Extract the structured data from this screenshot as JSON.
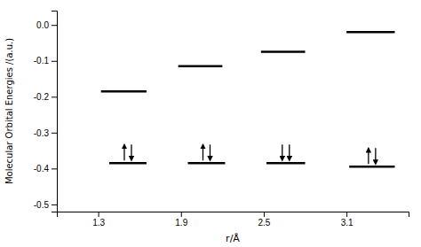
{
  "chart_data": {
    "type": "line",
    "xlabel": "r/Å",
    "ylabel": "Molecular Orbital Energies /(a.u.)",
    "xlim": [
      1.0,
      3.55
    ],
    "ylim": [
      -0.52,
      0.04
    ],
    "xticks": [
      1.3,
      1.9,
      2.5,
      3.1
    ],
    "yticks": [
      {
        "value": 0.0,
        "label": "0.0"
      },
      -0.1,
      -0.2,
      -0.3,
      -0.4,
      -0.5
    ],
    "grid": false,
    "color": "black",
    "series": [
      {
        "x": [
          1.32,
          1.65
        ],
        "values": [
          -0.185,
          -0.185
        ]
      },
      {
        "x": [
          1.88,
          2.2
        ],
        "values": [
          -0.115,
          -0.115
        ]
      },
      {
        "x": [
          2.48,
          2.8
        ],
        "values": [
          -0.075,
          -0.075
        ]
      },
      {
        "x": [
          3.1,
          3.45
        ],
        "values": [
          -0.02,
          -0.02
        ]
      },
      {
        "x": [
          1.38,
          1.65
        ],
        "values": [
          -0.385,
          -0.385
        ],
        "marker": "up_down"
      },
      {
        "x": [
          1.95,
          2.22
        ],
        "values": [
          -0.385,
          -0.385
        ],
        "marker": "up_down"
      },
      {
        "x": [
          2.52,
          2.8
        ],
        "values": [
          -0.385,
          -0.385
        ],
        "marker": "down_down"
      },
      {
        "x": [
          3.12,
          3.45
        ],
        "values": [
          -0.395,
          -0.395
        ],
        "marker": "up_down"
      }
    ]
  }
}
